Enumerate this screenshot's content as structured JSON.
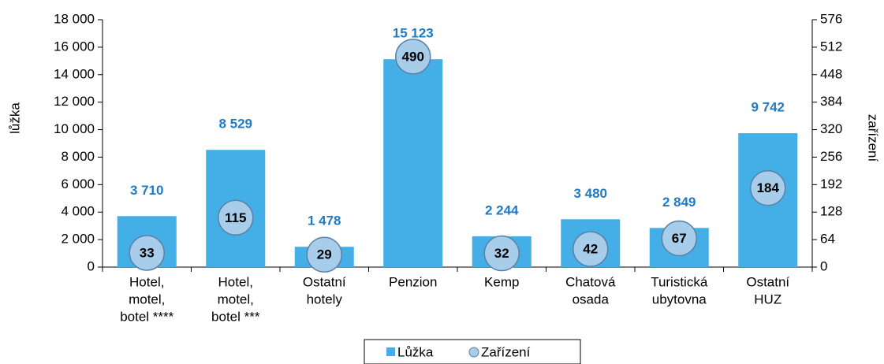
{
  "chart_data": {
    "type": "bar",
    "y_label": "lůžka",
    "y2_label": "zařízení",
    "categories": [
      [
        "Hotel,",
        "motel,",
        "botel ****"
      ],
      [
        "Hotel,",
        "motel,",
        "botel ***"
      ],
      [
        "Ostatní",
        "hotely"
      ],
      [
        "Penzion"
      ],
      [
        "Kemp"
      ],
      [
        "Chatová",
        "osada"
      ],
      [
        "Turistická",
        "ubytovna"
      ],
      [
        "Ostatní",
        "HUZ"
      ]
    ],
    "series": [
      {
        "name": "Lůžka",
        "color": "#44aee6",
        "values": [
          3710,
          8529,
          1478,
          15123,
          2244,
          3480,
          2849,
          9742
        ],
        "value_labels": [
          "3 710",
          "8 529",
          "1 478",
          "15 123",
          "2 244",
          "3 480",
          "2 849",
          "9 742"
        ]
      },
      {
        "name": "Zařízení",
        "color": "#a8cdea",
        "axis": "y2",
        "values": [
          33,
          115,
          29,
          490,
          32,
          42,
          67,
          184
        ]
      }
    ],
    "ylim": [
      0,
      18000
    ],
    "yticks": [
      0,
      {
        "value": 2000,
        "label": "2 000"
      },
      {
        "value": 4000,
        "label": "4 000"
      },
      {
        "value": 6000,
        "label": "6 000"
      },
      {
        "value": 8000,
        "label": "8 000"
      },
      {
        "value": 10000,
        "label": "10 000"
      },
      {
        "value": 12000,
        "label": "12 000"
      },
      {
        "value": 14000,
        "label": "14 000"
      },
      {
        "value": 16000,
        "label": "16 000"
      },
      {
        "value": 18000,
        "label": "18 000"
      }
    ],
    "y2lim": [
      0,
      576
    ],
    "y2ticks": [
      0,
      64,
      128,
      192,
      256,
      320,
      384,
      448,
      512,
      576
    ],
    "legend": "bottom"
  }
}
